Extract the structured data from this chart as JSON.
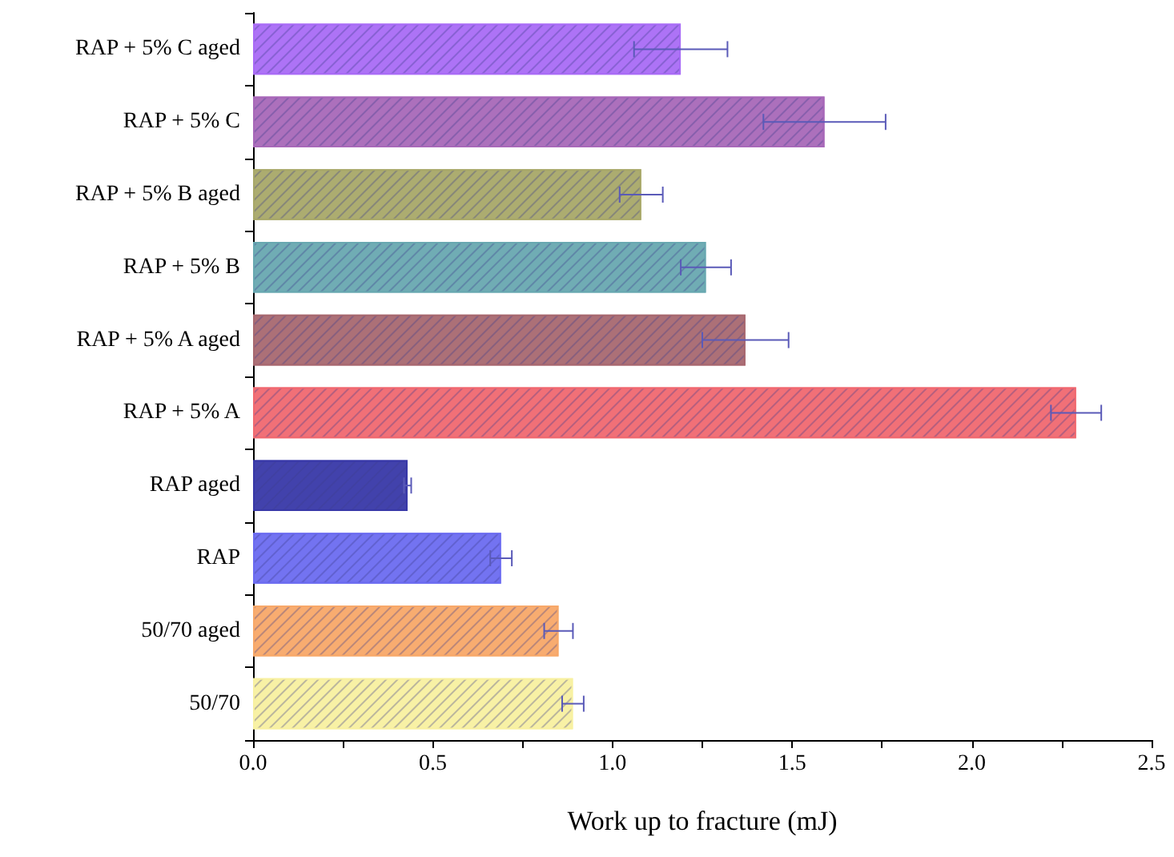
{
  "chart_data": {
    "type": "bar",
    "orientation": "horizontal",
    "xlabel": "Work up to fracture (mJ)",
    "categories": [
      "RAP + 5% C aged",
      "RAP + 5% C",
      "RAP + 5% B aged",
      "RAP + 5% B",
      "RAP + 5% A aged",
      "RAP + 5% A",
      "RAP aged",
      "RAP",
      "50/70 aged",
      "50/70"
    ],
    "values": [
      1.19,
      1.59,
      1.08,
      1.26,
      1.37,
      2.29,
      0.43,
      0.69,
      0.85,
      0.89
    ],
    "errors": [
      0.13,
      0.17,
      0.06,
      0.07,
      0.12,
      0.07,
      0.01,
      0.03,
      0.04,
      0.03
    ],
    "colors": [
      "#a96cf5",
      "#a868b8",
      "#a8a868",
      "#68a8b0",
      "#a86870",
      "#f06870",
      "#3838a8",
      "#6c6cf0",
      "#f8a868",
      "#f8f0a0"
    ],
    "xlim": [
      0,
      2.5
    ],
    "xticks": [
      {
        "value": 0,
        "label": "0.0"
      },
      {
        "value": 0.25,
        "label": null
      },
      {
        "value": 0.5,
        "label": "0.5"
      },
      {
        "value": 0.75,
        "label": null
      },
      {
        "value": 1,
        "label": "1.0"
      },
      {
        "value": 1.25,
        "label": null
      },
      {
        "value": 1.5,
        "label": "1.5"
      },
      {
        "value": 1.75,
        "label": null
      },
      {
        "value": 2,
        "label": "2.0"
      },
      {
        "value": 2.25,
        "label": null
      },
      {
        "value": 2.5,
        "label": "2.5"
      }
    ],
    "grid": false
  }
}
